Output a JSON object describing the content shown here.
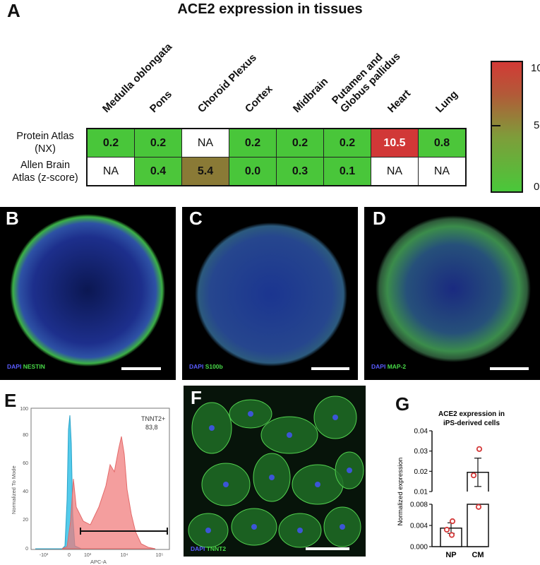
{
  "panels": {
    "a": "A",
    "b": "B",
    "c": "C",
    "d": "D",
    "e": "E",
    "f": "F",
    "g": "G"
  },
  "panel_a": {
    "title": "ACE2 expression in tissues",
    "columns": [
      "Medulla oblongata",
      "Pons",
      "Choroid Plexus",
      "Cortex",
      "Midbrain",
      "Putamen and\nGlobus pallidus",
      "Heart",
      "Lung"
    ],
    "rows": [
      {
        "label": "Protein Atlas\n(NX)",
        "cells": [
          "0.2",
          "0.2",
          "NA",
          "0.2",
          "0.2",
          "0.2",
          "10.5",
          "0.8"
        ]
      },
      {
        "label": "Allen Brain\nAtlas (z-score)",
        "cells": [
          "NA",
          "0.4",
          "5.4",
          "0.0",
          "0.3",
          "0.1",
          "NA",
          "NA"
        ]
      }
    ],
    "cell_colors": [
      [
        "#49c63a",
        "#49c63a",
        "#ffffff",
        "#49c63a",
        "#49c63a",
        "#49c63a",
        "#d13837",
        "#4cc63a"
      ],
      [
        "#ffffff",
        "#4cc63a",
        "#8a7a36",
        "#49c63a",
        "#4ac63a",
        "#49c63a",
        "#ffffff",
        "#ffffff"
      ]
    ],
    "scale": {
      "max": "10",
      "mid": "5",
      "min": "0"
    }
  },
  "panel_b": {
    "dapi": "DAPI",
    "marker": "NESTIN"
  },
  "panel_c": {
    "dapi": "DAPI",
    "marker": "S100b"
  },
  "panel_d": {
    "dapi": "DAPI",
    "marker": "MAP-2"
  },
  "panel_e": {
    "gate_name": "TNNT2+",
    "gate_value": "83,8",
    "ylabel": "Normalized To Mode",
    "xlabel": "APC-A",
    "yticks": [
      "0",
      "20",
      "40",
      "60",
      "80",
      "100"
    ],
    "xticks": [
      "-10³",
      "0",
      "10³",
      "10⁴",
      "10⁵"
    ]
  },
  "panel_f": {
    "dapi": "DAPI",
    "marker": "TNNT2"
  },
  "chart_data": {
    "type": "bar",
    "title": "ACE2 expression in\niPS-derived cells",
    "ylabel": "Normalized expression",
    "categories": [
      "NP",
      "CM"
    ],
    "values": [
      0.0035,
      0.0195
    ],
    "errors": [
      0.001,
      0.007
    ],
    "points": [
      [
        0.0022,
        0.0032,
        0.0048
      ],
      [
        0.0075,
        0.018,
        0.031
      ]
    ],
    "yticks_low": [
      "0.000",
      "0.004",
      "0.008"
    ],
    "yticks_high": [
      "0.01",
      "0.02",
      "0.03",
      "0.04"
    ],
    "ylim": [
      0,
      0.04
    ],
    "axis_break": [
      0.008,
      0.01
    ],
    "point_color": "#d43a3a"
  }
}
